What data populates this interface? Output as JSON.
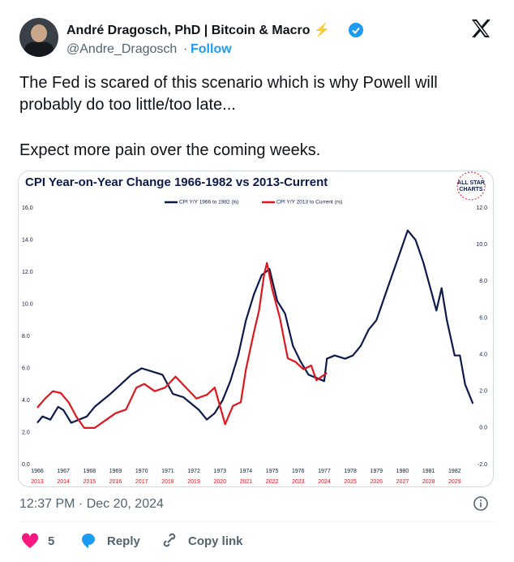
{
  "tweet": {
    "author_name": "André Dragosch, PhD | Bitcoin & Macro ⚡",
    "handle": "@Andre_Dragosch",
    "separator": "·",
    "follow": "Follow",
    "text_lines": [
      "The Fed is scared of this scenario which is why Powell will",
      "probably do too little/too late...",
      "Expect more pain over the coming weeks."
    ],
    "timestamp": "12:37 PM · Dec 20, 2024",
    "likes": "5",
    "reply": "Reply",
    "copy_link": "Copy link"
  },
  "chart_data": {
    "type": "line",
    "title": "CPI Year-on-Year Change 1966-1982 vs 2013-Current",
    "logo": [
      "ALL STAR",
      "CHARTS"
    ],
    "xlim": [
      1966,
      1983
    ],
    "xticks": [
      1966,
      1967,
      1968,
      1969,
      1970,
      1971,
      1972,
      1973,
      1974,
      1975,
      1976,
      1977,
      1978,
      1979,
      1980,
      1981,
      1982
    ],
    "x2lim": [
      2013,
      2030
    ],
    "x2ticks": [
      2013,
      2014,
      2015,
      2016,
      2017,
      2018,
      2019,
      2020,
      2021,
      2022,
      2023,
      2024,
      2025,
      2026,
      2027,
      2028,
      2029
    ],
    "ylim": [
      0,
      16
    ],
    "yticks": [
      {
        "value": 0,
        "label": "0.0"
      },
      {
        "value": 2,
        "label": "2.0"
      },
      {
        "value": 4,
        "label": "4.0"
      },
      {
        "value": 6,
        "label": "6.0"
      },
      {
        "value": 8,
        "label": "8.0"
      },
      {
        "value": 10,
        "label": "10.0"
      },
      {
        "value": 12,
        "label": "12.0"
      },
      {
        "value": 14,
        "label": "14.0"
      },
      {
        "value": 16,
        "label": "16.0"
      }
    ],
    "y2lim": [
      -2,
      12
    ],
    "y2ticks": [
      {
        "value": -2,
        "label": "-2.0"
      },
      {
        "value": 0,
        "label": "0.0"
      },
      {
        "value": 2,
        "label": "2.0"
      },
      {
        "value": 4,
        "label": "4.0"
      },
      {
        "value": 6,
        "label": "6.0"
      },
      {
        "value": 8,
        "label": "8.0"
      },
      {
        "value": 10,
        "label": "10.0"
      },
      {
        "value": 12,
        "label": "12.0"
      }
    ],
    "series": [
      {
        "name": "CPI Y/Y 1966 to 1982 (ls)",
        "color": "#0d1b4c",
        "x": [
          1966.0,
          1966.2,
          1966.5,
          1966.8,
          1967.0,
          1967.3,
          1967.6,
          1967.9,
          1968.2,
          1968.5,
          1968.8,
          1969.2,
          1969.6,
          1970.0,
          1970.4,
          1970.8,
          1971.2,
          1971.6,
          1971.9,
          1972.2,
          1972.5,
          1972.8,
          1973.1,
          1973.4,
          1973.7,
          1974.0,
          1974.3,
          1974.6,
          1974.9,
          1975.2,
          1975.5,
          1975.8,
          1976.1,
          1976.4,
          1976.7,
          1977.0,
          1977.1,
          1977.4,
          1977.8,
          1978.1,
          1978.4,
          1978.7,
          1979.0,
          1979.3,
          1979.6,
          1979.9,
          1980.2,
          1980.5,
          1980.8,
          1981.1,
          1981.3,
          1981.5,
          1981.7,
          1982.0,
          1982.2,
          1982.4,
          1982.7
        ],
        "values": [
          2.6,
          3.0,
          2.8,
          3.6,
          3.4,
          2.6,
          2.8,
          3.0,
          3.6,
          4.0,
          4.4,
          5.0,
          5.6,
          6.0,
          5.8,
          5.6,
          4.4,
          4.2,
          3.8,
          3.4,
          2.8,
          3.2,
          4.0,
          5.2,
          6.8,
          9.0,
          10.6,
          11.8,
          12.2,
          10.2,
          9.4,
          7.4,
          6.4,
          5.6,
          5.4,
          5.2,
          6.6,
          6.8,
          6.6,
          6.8,
          7.4,
          8.4,
          9.0,
          10.4,
          11.8,
          13.2,
          14.6,
          14.0,
          12.6,
          10.8,
          9.6,
          11.0,
          9.0,
          6.8,
          6.8,
          5.0,
          3.8
        ]
      },
      {
        "name": "CPI Y/Y 2013 to Current (rs)",
        "color": "#e0161e",
        "axis": "y2",
        "x": [
          2013.0,
          2013.3,
          2013.6,
          2013.9,
          2014.2,
          2014.5,
          2014.8,
          2015.2,
          2015.6,
          2016.0,
          2016.4,
          2016.8,
          2017.1,
          2017.5,
          2017.9,
          2018.3,
          2018.7,
          2019.1,
          2019.5,
          2019.8,
          2020.2,
          2020.5,
          2020.8,
          2021.0,
          2021.3,
          2021.5,
          2021.7,
          2021.8,
          2022.0,
          2022.3,
          2022.6,
          2022.9,
          2023.2,
          2023.5,
          2023.7,
          2023.9,
          2024.1
        ],
        "values": [
          1.1,
          1.6,
          2.0,
          1.9,
          1.4,
          0.6,
          0.0,
          0.0,
          0.4,
          0.8,
          1.0,
          2.2,
          2.4,
          2.0,
          2.2,
          2.8,
          2.2,
          1.6,
          1.8,
          2.2,
          0.2,
          1.2,
          1.4,
          3.2,
          5.2,
          6.4,
          8.4,
          9.0,
          7.6,
          6.0,
          3.8,
          3.6,
          3.2,
          3.4,
          2.6,
          2.8,
          3.0
        ]
      }
    ]
  }
}
